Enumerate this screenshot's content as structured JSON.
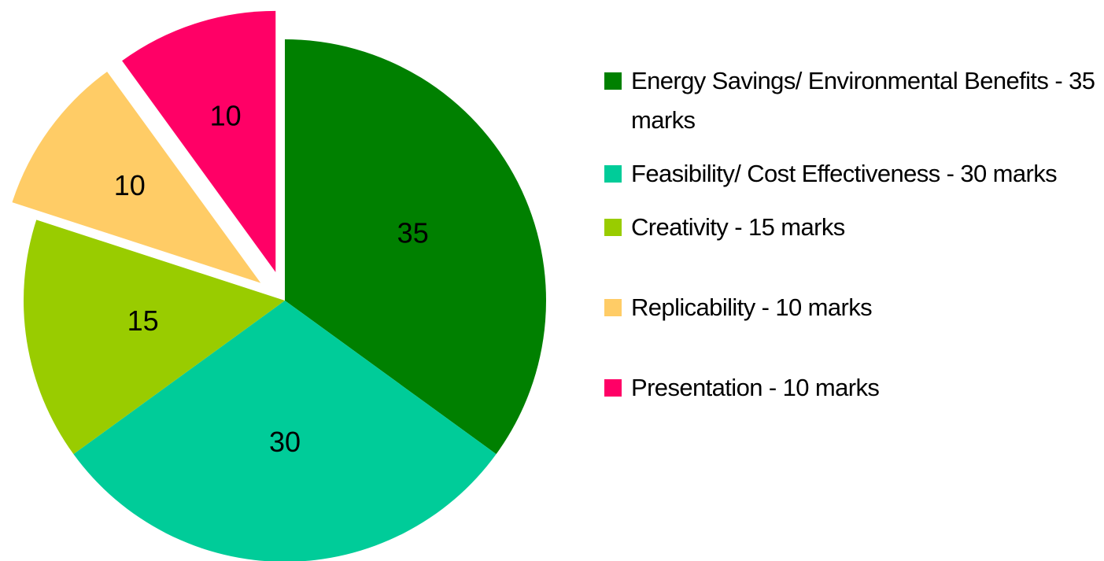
{
  "chart_data": {
    "type": "pie",
    "categories": [
      "Energy Savings/ Environmental Benefits - 35 marks",
      "Feasibility/ Cost Effectiveness - 30 marks",
      "Creativity - 15 marks",
      "Replicability - 10 marks",
      "Presentation - 10 marks"
    ],
    "values": [
      35,
      30,
      15,
      10,
      10
    ],
    "colors": [
      "#008000",
      "#00cc99",
      "#99cc00",
      "#ffcc66",
      "#ff0066"
    ],
    "explode": [
      false,
      false,
      false,
      true,
      true
    ],
    "legend": "right"
  }
}
